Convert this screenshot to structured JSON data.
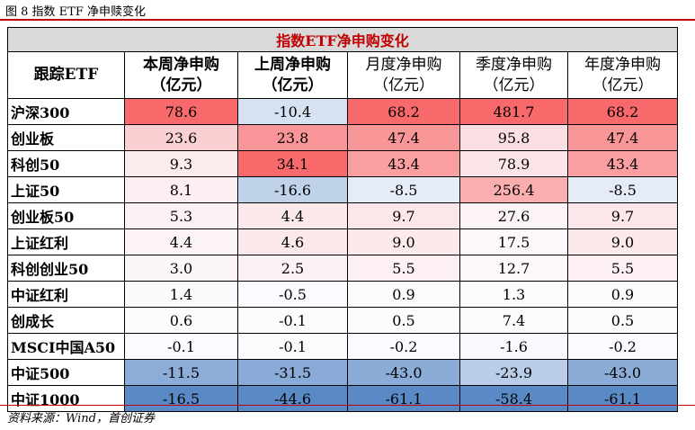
{
  "figure": {
    "caption": "图 8 指数 ETF 净申赎变化",
    "source": "资料来源：Wind，首创证券"
  },
  "chart_data": {
    "type": "heatmap",
    "title": "指数ETF净申购变化",
    "row_header": "跟踪ETF",
    "columns": [
      {
        "line1": "本周净申购",
        "line2": "（亿元）",
        "bold": true
      },
      {
        "line1": "上周净申购",
        "line2": "（亿元）",
        "bold": true
      },
      {
        "line1": "月度净申购",
        "line2": "（亿元）",
        "bold": false
      },
      {
        "line1": "季度净申购",
        "line2": "（亿元）",
        "bold": false
      },
      {
        "line1": "年度净申购",
        "line2": "（亿元）",
        "bold": false
      }
    ],
    "rows": [
      {
        "name": "沪深300",
        "values": [
          "78.6",
          "-10.4",
          "68.2",
          "481.7",
          "68.2"
        ]
      },
      {
        "name": "创业板",
        "values": [
          "23.6",
          "23.8",
          "47.4",
          "95.8",
          "47.4"
        ]
      },
      {
        "name": "科创50",
        "values": [
          "9.3",
          "34.1",
          "43.4",
          "78.9",
          "43.4"
        ]
      },
      {
        "name": "上证50",
        "values": [
          "8.1",
          "-16.6",
          "-8.5",
          "256.4",
          "-8.5"
        ]
      },
      {
        "name": "创业板50",
        "values": [
          "5.3",
          "4.4",
          "9.7",
          "27.6",
          "9.7"
        ]
      },
      {
        "name": "上证红利",
        "values": [
          "4.4",
          "4.6",
          "9.0",
          "17.5",
          "9.0"
        ]
      },
      {
        "name": "科创创业50",
        "values": [
          "3.0",
          "2.5",
          "5.5",
          "12.7",
          "5.5"
        ]
      },
      {
        "name": "中证红利",
        "values": [
          "1.4",
          "-0.5",
          "0.9",
          "1.3",
          "0.9"
        ]
      },
      {
        "name": "创成长",
        "values": [
          "0.6",
          "-0.1",
          "0.5",
          "7.4",
          "0.5"
        ]
      },
      {
        "name": "MSCI中国A50",
        "values": [
          "-0.1",
          "-0.1",
          "-0.2",
          "-1.6",
          "-0.2"
        ]
      },
      {
        "name": "中证500",
        "values": [
          "-11.5",
          "-31.5",
          "-43.0",
          "-23.9",
          "-43.0"
        ]
      },
      {
        "name": "中证1000",
        "values": [
          "-16.5",
          "-44.6",
          "-61.1",
          "-58.4",
          "-61.1"
        ]
      }
    ],
    "colors": {
      "positive_max": "#f8696b",
      "neutral": "#fcfcff",
      "negative_max": "#5a8ac6"
    }
  }
}
